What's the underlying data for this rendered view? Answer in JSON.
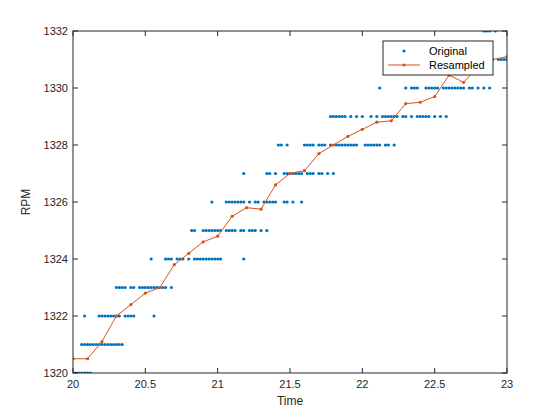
{
  "chart_data": {
    "type": "scatter",
    "x_label": "Time",
    "y_label": "RPM",
    "xlim": [
      20,
      23
    ],
    "ylim": [
      1320,
      1332
    ],
    "xticks": [
      20,
      20.5,
      21,
      21.5,
      22,
      22.5,
      23
    ],
    "yticks": [
      1320,
      1322,
      1324,
      1326,
      1328,
      1330,
      1332
    ],
    "grid": false,
    "legend": "northeast",
    "series": [
      {
        "name": "Original",
        "type": "scatter",
        "marker": "point",
        "color": "#0072bd",
        "x": [
          20.0,
          20.02,
          20.04,
          20.06,
          20.08,
          20.1,
          20.12,
          20.06,
          20.08,
          20.1,
          20.12,
          20.14,
          20.16,
          20.18,
          20.2,
          20.22,
          20.24,
          20.26,
          20.28,
          20.3,
          20.32,
          20.34,
          20.08,
          20.18,
          20.2,
          20.22,
          20.24,
          20.26,
          20.28,
          20.3,
          20.32,
          20.36,
          20.38,
          20.4,
          20.42,
          20.56,
          20.3,
          20.32,
          20.34,
          20.36,
          20.4,
          20.42,
          20.46,
          20.48,
          20.5,
          20.52,
          20.54,
          20.56,
          20.58,
          20.6,
          20.62,
          20.64,
          20.68,
          20.54,
          20.64,
          20.66,
          20.68,
          20.72,
          20.74,
          20.76,
          20.8,
          20.84,
          20.86,
          20.88,
          20.9,
          20.92,
          20.94,
          20.96,
          20.98,
          21.0,
          21.02,
          21.18,
          20.82,
          20.84,
          20.9,
          20.92,
          20.94,
          20.96,
          20.98,
          21.0,
          21.02,
          21.06,
          21.08,
          21.1,
          21.12,
          21.16,
          21.18,
          21.22,
          21.24,
          21.26,
          21.3,
          21.34,
          20.96,
          21.06,
          21.08,
          21.1,
          21.12,
          21.14,
          21.16,
          21.18,
          21.22,
          21.26,
          21.28,
          21.32,
          21.34,
          21.36,
          21.38,
          21.4,
          21.46,
          21.48,
          21.52,
          21.58,
          21.18,
          21.34,
          21.36,
          21.4,
          21.46,
          21.48,
          21.5,
          21.52,
          21.54,
          21.56,
          21.58,
          21.62,
          21.64,
          21.66,
          21.7,
          21.72,
          21.76,
          21.8,
          21.42,
          21.44,
          21.48,
          21.6,
          21.62,
          21.64,
          21.66,
          21.7,
          21.72,
          21.74,
          21.78,
          21.82,
          21.84,
          21.86,
          21.88,
          21.9,
          21.92,
          21.94,
          21.96,
          22.02,
          22.04,
          22.06,
          22.08,
          22.1,
          22.12,
          22.16,
          22.18,
          22.22,
          21.78,
          21.8,
          21.82,
          21.84,
          21.86,
          21.88,
          21.92,
          21.96,
          22.0,
          22.06,
          22.1,
          22.14,
          22.16,
          22.18,
          22.2,
          22.22,
          22.24,
          22.28,
          22.3,
          22.34,
          22.38,
          22.4,
          22.42,
          22.44,
          22.46,
          22.5,
          22.54,
          22.58,
          22.12,
          22.3,
          22.34,
          22.36,
          22.38,
          22.44,
          22.46,
          22.48,
          22.5,
          22.52,
          22.56,
          22.58,
          22.6,
          22.62,
          22.64,
          22.66,
          22.68,
          22.7,
          22.74,
          22.76,
          22.8,
          22.84,
          22.88,
          22.8,
          22.9,
          22.94,
          22.96,
          22.98,
          23.0,
          22.84,
          22.86,
          22.88,
          22.92
        ],
        "values": [
          1320,
          1320,
          1320,
          1320,
          1320,
          1320,
          1320,
          1321,
          1321,
          1321,
          1321,
          1321,
          1321,
          1321,
          1321,
          1321,
          1321,
          1321,
          1321,
          1321,
          1321,
          1321,
          1322,
          1322,
          1322,
          1322,
          1322,
          1322,
          1322,
          1322,
          1322,
          1322,
          1322,
          1322,
          1322,
          1322,
          1323,
          1323,
          1323,
          1323,
          1323,
          1323,
          1323,
          1323,
          1323,
          1323,
          1323,
          1323,
          1323,
          1323,
          1323,
          1323,
          1323,
          1324,
          1324,
          1324,
          1324,
          1324,
          1324,
          1324,
          1324,
          1324,
          1324,
          1324,
          1324,
          1324,
          1324,
          1324,
          1324,
          1324,
          1324,
          1324,
          1325,
          1325,
          1325,
          1325,
          1325,
          1325,
          1325,
          1325,
          1325,
          1325,
          1325,
          1325,
          1325,
          1325,
          1325,
          1325,
          1325,
          1325,
          1325,
          1325,
          1326,
          1326,
          1326,
          1326,
          1326,
          1326,
          1326,
          1326,
          1326,
          1326,
          1326,
          1326,
          1326,
          1326,
          1326,
          1326,
          1326,
          1326,
          1326,
          1326,
          1327,
          1327,
          1327,
          1327,
          1327,
          1327,
          1327,
          1327,
          1327,
          1327,
          1327,
          1327,
          1327,
          1327,
          1327,
          1327,
          1327,
          1327,
          1328,
          1328,
          1328,
          1328,
          1328,
          1328,
          1328,
          1328,
          1328,
          1328,
          1328,
          1328,
          1328,
          1328,
          1328,
          1328,
          1328,
          1328,
          1328,
          1328,
          1328,
          1328,
          1328,
          1328,
          1328,
          1328,
          1328,
          1328,
          1329,
          1329,
          1329,
          1329,
          1329,
          1329,
          1329,
          1329,
          1329,
          1329,
          1329,
          1329,
          1329,
          1329,
          1329,
          1329,
          1329,
          1329,
          1329,
          1329,
          1329,
          1329,
          1329,
          1329,
          1329,
          1329,
          1329,
          1329,
          1330,
          1330,
          1330,
          1330,
          1330,
          1330,
          1330,
          1330,
          1330,
          1330,
          1330,
          1330,
          1330,
          1330,
          1330,
          1330,
          1330,
          1330,
          1330,
          1330,
          1330,
          1330,
          1330,
          1331,
          1331,
          1331,
          1331,
          1331,
          1331,
          1332,
          1332,
          1332,
          1332
        ]
      },
      {
        "name": "Resampled",
        "type": "line",
        "marker": "point",
        "line_style": "solid",
        "color": "#d95319",
        "x": [
          20.0,
          20.1,
          20.2,
          20.3,
          20.4,
          20.5,
          20.6,
          20.7,
          20.8,
          20.9,
          21.0,
          21.1,
          21.2,
          21.3,
          21.4,
          21.5,
          21.6,
          21.7,
          21.8,
          21.9,
          22.0,
          22.1,
          22.2,
          22.3,
          22.4,
          22.5,
          22.6,
          22.7,
          22.8,
          22.9,
          23.0
        ],
        "values": [
          1320.5,
          1320.5,
          1321.1,
          1322.0,
          1322.4,
          1322.8,
          1323.0,
          1323.8,
          1324.2,
          1324.6,
          1324.8,
          1325.5,
          1325.8,
          1325.75,
          1326.6,
          1327.0,
          1327.1,
          1327.7,
          1328.0,
          1328.3,
          1328.55,
          1328.8,
          1328.85,
          1329.45,
          1329.5,
          1329.7,
          1330.45,
          1330.2,
          1330.75,
          1331.0,
          1331.1
        ]
      }
    ]
  }
}
